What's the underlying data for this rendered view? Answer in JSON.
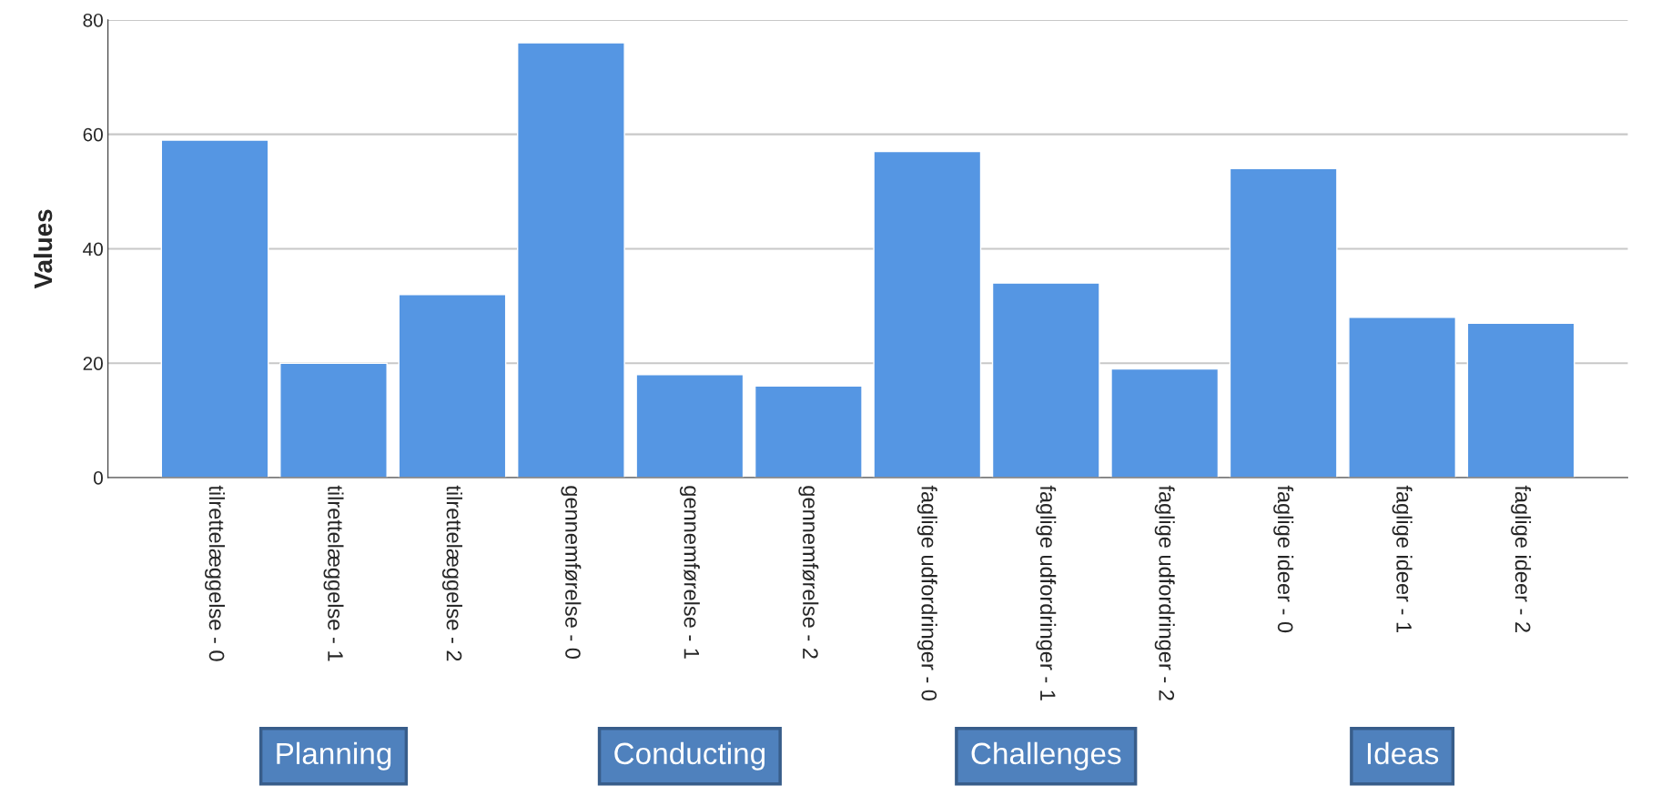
{
  "chart_data": {
    "type": "bar",
    "ylabel": "Values",
    "categories": [
      "tilrettelæggelse - 0",
      "tilrettelæggelse - 1",
      "tilrettelæggelse - 2",
      "gennemførelse - 0",
      "gennemførelse - 1",
      "gennemførelse - 2",
      "faglige udfordringer - 0",
      "faglige udfordringer - 1",
      "faglige udfordringer - 2",
      "faglige ideer - 0",
      "faglige ideer - 1",
      "faglige ideer - 2"
    ],
    "values": [
      59,
      20,
      32,
      76,
      18,
      16,
      57,
      34,
      19,
      54,
      28,
      27
    ],
    "color": "#5596e3",
    "ylim": [
      0,
      80
    ],
    "yticks": [
      0,
      20,
      40,
      60,
      80
    ],
    "grid": "y",
    "annotations": [
      "Planning",
      "Conducting",
      "Challenges",
      "Ideas"
    ]
  }
}
